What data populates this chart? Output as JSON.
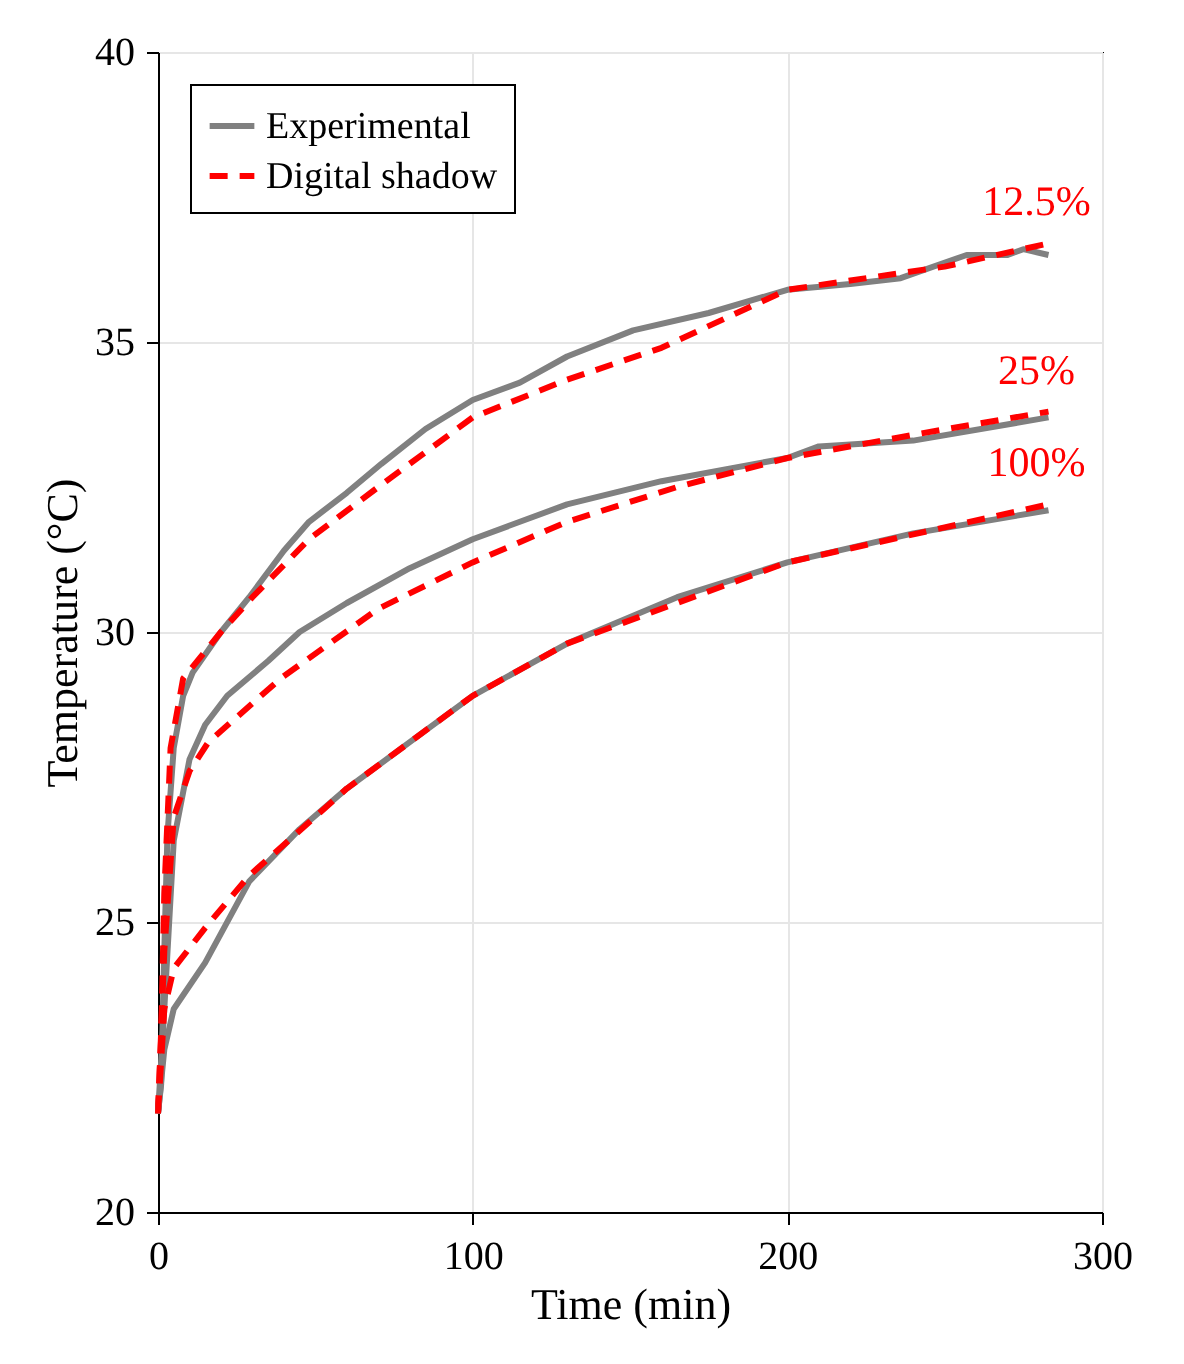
{
  "chart_data": {
    "type": "line",
    "xlabel": "Time (min)",
    "ylabel": "Temperature (°C)",
    "xlim": [
      0,
      300
    ],
    "ylim": [
      20,
      40
    ],
    "xticks": [
      0,
      100,
      200,
      300
    ],
    "yticks": [
      20,
      25,
      30,
      35,
      40
    ],
    "grid": true,
    "legend": "top left",
    "series": [
      {
        "name": "Experimental",
        "color": "#808080",
        "line_style": "solid",
        "x": [
          0,
          1,
          2,
          3,
          5,
          8,
          11,
          20,
          29,
          40,
          48,
          60,
          71,
          85,
          100,
          115,
          130,
          151,
          175,
          200,
          220,
          236,
          257,
          270,
          275,
          283
        ],
        "values": [
          21.7,
          22.2,
          24.5,
          26.5,
          28.0,
          28.9,
          29.3,
          30.0,
          30.6,
          31.4,
          31.9,
          32.4,
          32.9,
          33.5,
          34.0,
          34.3,
          34.75,
          35.2,
          35.5,
          35.9,
          36.0,
          36.1,
          36.5,
          36.5,
          36.6,
          36.5
        ]
      },
      {
        "name": "Digital shadow",
        "color": "#ff0000",
        "line_style": "dashed",
        "x": [
          0,
          1,
          2,
          4,
          8,
          20,
          30,
          48,
          70,
          100,
          130,
          160,
          200,
          250,
          283
        ],
        "values": [
          21.7,
          23.0,
          25.5,
          28.0,
          29.2,
          30.0,
          30.6,
          31.6,
          32.5,
          33.7,
          34.35,
          34.9,
          35.9,
          36.3,
          36.7
        ]
      },
      {
        "color": "#808080",
        "line_style": "solid",
        "x": [
          0,
          2,
          5,
          10,
          15,
          22,
          35,
          45,
          60,
          80,
          100,
          130,
          160,
          200,
          210,
          240,
          283
        ],
        "values": [
          21.7,
          23.5,
          26.4,
          27.8,
          28.4,
          28.9,
          29.5,
          30.0,
          30.5,
          31.1,
          31.6,
          32.2,
          32.6,
          33.0,
          33.2,
          33.3,
          33.7
        ]
      },
      {
        "color": "#ff0000",
        "line_style": "dashed",
        "x": [
          0,
          2,
          5,
          10,
          16,
          39,
          70,
          100,
          130,
          165,
          200,
          240,
          283
        ],
        "values": [
          21.7,
          24.5,
          26.8,
          27.6,
          28.1,
          29.2,
          30.4,
          31.2,
          31.9,
          32.5,
          33.0,
          33.4,
          33.8
        ]
      },
      {
        "color": "#808080",
        "line_style": "solid",
        "x": [
          0,
          2,
          5,
          15,
          29,
          45,
          60,
          80,
          100,
          130,
          165,
          200,
          240,
          283
        ],
        "values": [
          21.7,
          22.8,
          23.5,
          24.3,
          25.7,
          26.6,
          27.3,
          28.1,
          28.9,
          29.8,
          30.6,
          31.2,
          31.7,
          32.1
        ]
      },
      {
        "color": "#ff0000",
        "line_style": "dashed",
        "x": [
          0,
          2,
          5,
          15,
          29,
          60,
          100,
          130,
          200,
          283
        ],
        "values": [
          21.7,
          23.5,
          24.2,
          24.9,
          25.8,
          27.3,
          28.9,
          29.8,
          31.2,
          32.2
        ]
      }
    ],
    "annotations": [
      "12.5%",
      "25%",
      "100%"
    ]
  }
}
